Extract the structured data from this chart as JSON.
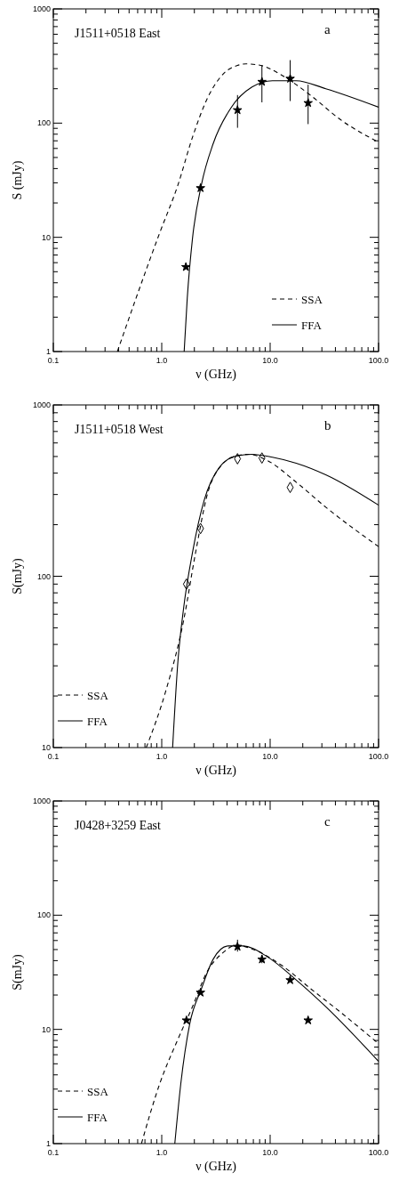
{
  "chart_data": [
    {
      "type": "scatter",
      "title": "J1511+0518 East",
      "xlabel": "ν (GHz)",
      "ylabel": "S (mJy)",
      "annotations": [
        "a"
      ],
      "log": "xy",
      "legend": "bottom right",
      "xlim": [
        0.1,
        100
      ],
      "ylim": [
        1,
        1000
      ],
      "xticks": [
        {
          "value": 0.1,
          "label": "0.1"
        },
        {
          "value": 0.2,
          "label": null
        },
        {
          "value": 0.3,
          "label": null
        },
        {
          "value": 0.4,
          "label": null
        },
        {
          "value": 0.5,
          "label": null
        },
        {
          "value": 0.6,
          "label": null
        },
        {
          "value": 0.7,
          "label": null
        },
        {
          "value": 0.8,
          "label": null
        },
        {
          "value": 0.9,
          "label": null
        },
        {
          "value": 1,
          "label": "1.0"
        },
        {
          "value": 2,
          "label": null
        },
        {
          "value": 3,
          "label": null
        },
        {
          "value": 4,
          "label": null
        },
        {
          "value": 5,
          "label": null
        },
        {
          "value": 6,
          "label": null
        },
        {
          "value": 7,
          "label": null
        },
        {
          "value": 8,
          "label": null
        },
        {
          "value": 9,
          "label": null
        },
        {
          "value": 10,
          "label": "10.0"
        },
        {
          "value": 20,
          "label": null
        },
        {
          "value": 30,
          "label": null
        },
        {
          "value": 40,
          "label": null
        },
        {
          "value": 50,
          "label": null
        },
        {
          "value": 60,
          "label": null
        },
        {
          "value": 70,
          "label": null
        },
        {
          "value": 80,
          "label": null
        },
        {
          "value": 90,
          "label": null
        },
        {
          "value": 100,
          "label": "100.0"
        }
      ],
      "yticks": [
        1,
        {
          "value": 2,
          "label": null
        },
        {
          "value": 3,
          "label": null
        },
        {
          "value": 4,
          "label": null
        },
        {
          "value": 5,
          "label": null
        },
        {
          "value": 6,
          "label": null
        },
        {
          "value": 7,
          "label": null
        },
        {
          "value": 8,
          "label": null
        },
        {
          "value": 9,
          "label": null
        },
        10,
        {
          "value": 20,
          "label": null
        },
        {
          "value": 30,
          "label": null
        },
        {
          "value": 40,
          "label": null
        },
        {
          "value": 50,
          "label": null
        },
        {
          "value": 60,
          "label": null
        },
        {
          "value": 70,
          "label": null
        },
        {
          "value": 80,
          "label": null
        },
        {
          "value": 90,
          "label": null
        },
        100,
        {
          "value": 200,
          "label": null
        },
        {
          "value": 300,
          "label": null
        },
        {
          "value": 400,
          "label": null
        },
        {
          "value": 500,
          "label": null
        },
        {
          "value": 600,
          "label": null
        },
        {
          "value": 700,
          "label": null
        },
        {
          "value": 800,
          "label": null
        },
        {
          "value": 900,
          "label": null
        },
        1000
      ],
      "series": [
        {
          "color": "#000000",
          "marker": "star",
          "x": [
            1.67,
            2.28,
            5.0,
            8.4,
            15.3,
            22.4
          ],
          "values": [
            5.5,
            27,
            130,
            230,
            245,
            150
          ],
          "errors": [
            null,
            null,
            [
              91,
              176
            ],
            [
              152,
              320
            ],
            [
              156,
              356
            ],
            [
              98,
              217
            ]
          ]
        },
        {
          "type": "line",
          "name": "SSA",
          "color": "#000000",
          "line_style": "dashed",
          "x": [
            0.39,
            0.58,
            0.96,
            1.41,
            1.92,
            2.63,
            3.85,
            5.0,
            6.0,
            8.2,
            12.7,
            23.8,
            44.7,
            100
          ],
          "values": [
            1,
            2.94,
            11,
            28.7,
            75,
            164,
            280,
            320,
            330,
            320,
            264,
            174,
            107,
            68
          ]
        },
        {
          "type": "line",
          "name": "FFA",
          "color": "#000000",
          "line_style": "solid",
          "x": [
            1.61,
            1.72,
            1.92,
            2.32,
            2.98,
            4.35,
            6.8,
            10.5,
            17.4,
            32.6,
            100
          ],
          "values": [
            1,
            2.94,
            9.7,
            28.7,
            66,
            136,
            207,
            235,
            235,
            200,
            138
          ]
        }
      ]
    },
    {
      "type": "scatter",
      "title": "J1511+0518 West",
      "xlabel": "ν (GHz)",
      "ylabel": "S(mJy)",
      "annotations": [
        "b"
      ],
      "log": "xy",
      "legend": "bottom left",
      "xlim": [
        0.1,
        100
      ],
      "ylim": [
        10,
        1000
      ],
      "xticks": [
        {
          "value": 0.1,
          "label": "0.1"
        },
        {
          "value": 0.2,
          "label": null
        },
        {
          "value": 0.3,
          "label": null
        },
        {
          "value": 0.4,
          "label": null
        },
        {
          "value": 0.5,
          "label": null
        },
        {
          "value": 0.6,
          "label": null
        },
        {
          "value": 0.7,
          "label": null
        },
        {
          "value": 0.8,
          "label": null
        },
        {
          "value": 0.9,
          "label": null
        },
        {
          "value": 1,
          "label": "1.0"
        },
        {
          "value": 2,
          "label": null
        },
        {
          "value": 3,
          "label": null
        },
        {
          "value": 4,
          "label": null
        },
        {
          "value": 5,
          "label": null
        },
        {
          "value": 6,
          "label": null
        },
        {
          "value": 7,
          "label": null
        },
        {
          "value": 8,
          "label": null
        },
        {
          "value": 9,
          "label": null
        },
        {
          "value": 10,
          "label": "10.0"
        },
        {
          "value": 20,
          "label": null
        },
        {
          "value": 30,
          "label": null
        },
        {
          "value": 40,
          "label": null
        },
        {
          "value": 50,
          "label": null
        },
        {
          "value": 60,
          "label": null
        },
        {
          "value": 70,
          "label": null
        },
        {
          "value": 80,
          "label": null
        },
        {
          "value": 90,
          "label": null
        },
        {
          "value": 100,
          "label": "100.0"
        }
      ],
      "yticks": [
        10,
        {
          "value": 20,
          "label": null
        },
        {
          "value": 30,
          "label": null
        },
        {
          "value": 40,
          "label": null
        },
        {
          "value": 50,
          "label": null
        },
        {
          "value": 60,
          "label": null
        },
        {
          "value": 70,
          "label": null
        },
        {
          "value": 80,
          "label": null
        },
        {
          "value": 90,
          "label": null
        },
        100,
        {
          "value": 200,
          "label": null
        },
        {
          "value": 300,
          "label": null
        },
        {
          "value": 400,
          "label": null
        },
        {
          "value": 500,
          "label": null
        },
        {
          "value": 600,
          "label": null
        },
        {
          "value": 700,
          "label": null
        },
        {
          "value": 800,
          "label": null
        },
        {
          "value": 900,
          "label": null
        },
        1000
      ],
      "series": [
        {
          "color": "#000000",
          "marker": "diamond",
          "x": [
            1.69,
            2.28,
            5.0,
            8.4,
            15.3
          ],
          "values": [
            90,
            190,
            485,
            490,
            330
          ]
        },
        {
          "type": "line",
          "name": "SSA",
          "color": "#000000",
          "line_style": "dashed",
          "x": [
            0.72,
            1.09,
            1.59,
            2.05,
            2.64,
            3.61,
            4.94,
            6.35,
            9.3,
            17.4,
            32.6,
            100
          ],
          "values": [
            10,
            21.4,
            55,
            137,
            302,
            449,
            505,
            515,
            476,
            354,
            253,
            149
          ]
        },
        {
          "type": "line",
          "name": "FFA",
          "color": "#000000",
          "line_style": "solid",
          "x": [
            1.26,
            1.41,
            1.59,
            1.92,
            2.47,
            3.39,
            4.94,
            6.78,
            10.5,
            17.4,
            32.6,
            100
          ],
          "values": [
            10,
            31.8,
            64.8,
            137,
            279,
            431,
            505,
            515,
            495,
            457,
            391,
            260
          ]
        }
      ]
    },
    {
      "type": "scatter",
      "title": "J0428+3259 East",
      "xlabel": "ν (GHz)",
      "ylabel": "S(mJy)",
      "annotations": [
        "c"
      ],
      "log": "xy",
      "legend": "bottom left",
      "xlim": [
        0.1,
        100
      ],
      "ylim": [
        1,
        1000
      ],
      "xticks": [
        {
          "value": 0.1,
          "label": "0.1"
        },
        {
          "value": 0.2,
          "label": null
        },
        {
          "value": 0.3,
          "label": null
        },
        {
          "value": 0.4,
          "label": null
        },
        {
          "value": 0.5,
          "label": null
        },
        {
          "value": 0.6,
          "label": null
        },
        {
          "value": 0.7,
          "label": null
        },
        {
          "value": 0.8,
          "label": null
        },
        {
          "value": 0.9,
          "label": null
        },
        {
          "value": 1,
          "label": "1.0"
        },
        {
          "value": 2,
          "label": null
        },
        {
          "value": 3,
          "label": null
        },
        {
          "value": 4,
          "label": null
        },
        {
          "value": 5,
          "label": null
        },
        {
          "value": 6,
          "label": null
        },
        {
          "value": 7,
          "label": null
        },
        {
          "value": 8,
          "label": null
        },
        {
          "value": 9,
          "label": null
        },
        {
          "value": 10,
          "label": "10.0"
        },
        {
          "value": 20,
          "label": null
        },
        {
          "value": 30,
          "label": null
        },
        {
          "value": 40,
          "label": null
        },
        {
          "value": 50,
          "label": null
        },
        {
          "value": 60,
          "label": null
        },
        {
          "value": 70,
          "label": null
        },
        {
          "value": 80,
          "label": null
        },
        {
          "value": 90,
          "label": null
        },
        {
          "value": 100,
          "label": "100.0"
        }
      ],
      "yticks": [
        1,
        {
          "value": 2,
          "label": null
        },
        {
          "value": 3,
          "label": null
        },
        {
          "value": 4,
          "label": null
        },
        {
          "value": 5,
          "label": null
        },
        {
          "value": 6,
          "label": null
        },
        {
          "value": 7,
          "label": null
        },
        {
          "value": 8,
          "label": null
        },
        {
          "value": 9,
          "label": null
        },
        10,
        {
          "value": 20,
          "label": null
        },
        {
          "value": 30,
          "label": null
        },
        {
          "value": 40,
          "label": null
        },
        {
          "value": 50,
          "label": null
        },
        {
          "value": 60,
          "label": null
        },
        {
          "value": 70,
          "label": null
        },
        {
          "value": 80,
          "label": null
        },
        {
          "value": 90,
          "label": null
        },
        100,
        {
          "value": 200,
          "label": null
        },
        {
          "value": 300,
          "label": null
        },
        {
          "value": 400,
          "label": null
        },
        {
          "value": 500,
          "label": null
        },
        {
          "value": 600,
          "label": null
        },
        {
          "value": 700,
          "label": null
        },
        {
          "value": 800,
          "label": null
        },
        {
          "value": 900,
          "label": null
        },
        1000
      ],
      "series": [
        {
          "color": "#000000",
          "marker": "star",
          "x": [
            1.69,
            2.28,
            5.0,
            8.4,
            15.3,
            22.4
          ],
          "values": [
            12,
            21,
            53,
            41,
            27,
            12
          ],
          "errors": [
            null,
            null,
            [
              48,
              61
            ],
            [
              38,
              45
            ],
            null,
            null
          ]
        },
        {
          "type": "line",
          "name": "SSA",
          "color": "#000000",
          "line_style": "dashed",
          "x": [
            0.65,
            0.96,
            1.41,
            1.92,
            2.64,
            3.61,
            4.94,
            6.78,
            12.7,
            23.8,
            44.7,
            100
          ],
          "values": [
            1,
            3.36,
            8.2,
            15.8,
            32.4,
            46.3,
            54.7,
            50.7,
            36.5,
            22.6,
            14.1,
            7.5
          ]
        },
        {
          "type": "line",
          "name": "FFA",
          "color": "#000000",
          "line_style": "solid",
          "x": [
            1.32,
            1.5,
            1.81,
            2.32,
            2.98,
            4.09,
            5.6,
            9.3,
            17.4,
            32.6,
            100
          ],
          "values": [
            1,
            3.36,
            11.1,
            22.6,
            41.1,
            53.8,
            53.8,
            43.6,
            27.1,
            15.8,
            5.25
          ]
        }
      ]
    }
  ]
}
